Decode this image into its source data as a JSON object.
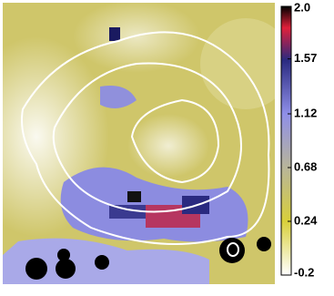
{
  "chart_data": {
    "type": "heatmap",
    "colorbar": {
      "ylim": [
        -0.2,
        2.0
      ],
      "yticks": [
        {
          "value": 2.0,
          "label": "2.0"
        },
        1.57,
        1.12,
        0.68,
        0.24,
        -0.2
      ]
    }
  }
}
